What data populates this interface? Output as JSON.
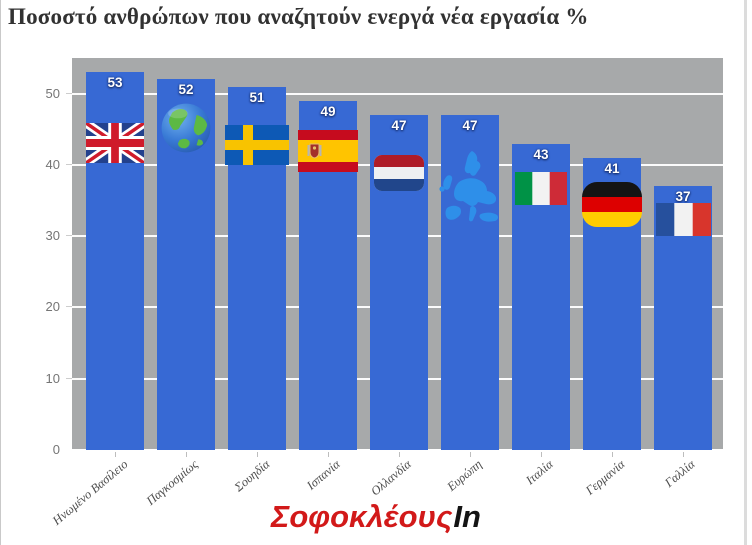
{
  "chart_data": {
    "type": "bar",
    "title": "Ποσοστό ανθρώπων που αναζητούν ενεργά νέα εργασία %",
    "categories": [
      "Ηνωμένο Βασίλειο",
      "Παγκοσμίως",
      "Σουηδία",
      "Ισπανία",
      "Ολλανδία",
      "Ευρώπη",
      "Ιταλία",
      "Γερμανία",
      "Γαλλία"
    ],
    "values": [
      53,
      52,
      51,
      49,
      47,
      47,
      43,
      41,
      37
    ],
    "icons": [
      "uk-flag",
      "globe",
      "sweden-flag",
      "spain-flag",
      "netherlands-flag",
      "europe-map",
      "italy-flag",
      "germany-flag",
      "france-flag"
    ],
    "xlabel": "",
    "ylabel": "",
    "ylim": [
      0,
      55
    ],
    "yticks": [
      0,
      10,
      20,
      30,
      40,
      50
    ],
    "grid": true,
    "legend": "none",
    "plot_background": "#a7a9aa",
    "bar_color": "#3769d4",
    "value_label_color": "#ffffff"
  },
  "watermark": {
    "primary": "Σοφοκλέους",
    "secondary": "In",
    "primary_color": "#d21919",
    "secondary_color": "#141414"
  }
}
